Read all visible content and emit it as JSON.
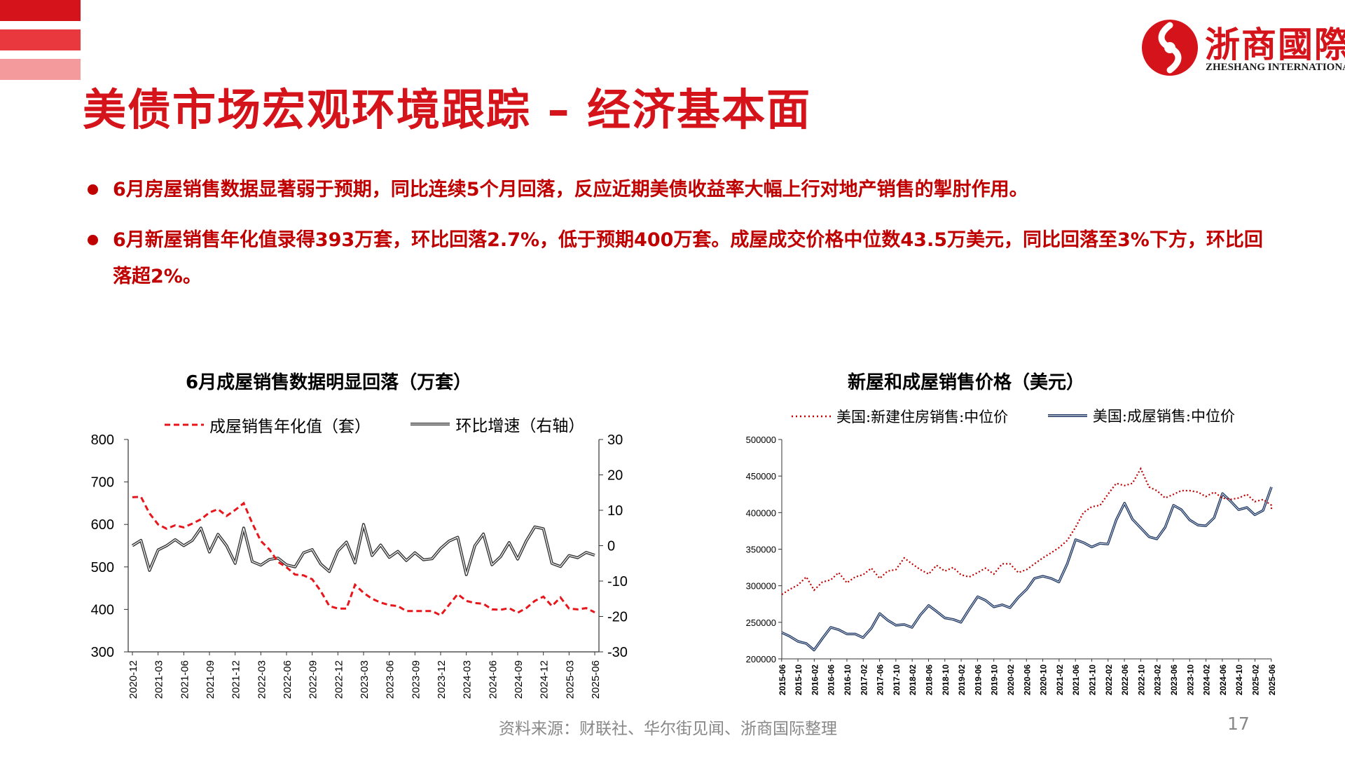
{
  "colors": {
    "brand_red": "#d5131a",
    "bullet_red": "#c00000",
    "series_red": "#e8161b",
    "series_black": "#333333",
    "series_navy": "#1f3864",
    "series_dotted_red": "#c00000"
  },
  "header": {
    "title": "美债市场宏观环境跟踪 – 经济基本面",
    "logo_cn": "浙商國際",
    "logo_en": "ZHESHANG INTERNATIONAL",
    "logo_icon": "zheshang-logo-icon"
  },
  "bullets": [
    {
      "text": "6月房屋销售数据显著弱于预期，同比连续5个月回落，反应近期美债收益率大幅上行对地产销售的掣肘作用。"
    },
    {
      "text": "6月新屋销售年化值录得393万套，环比回落2.7%，低于预期400万套。成屋成交价格中位数43.5万美元，同比回落至3%下方，环比回落超2%。"
    }
  ],
  "footer": {
    "source": "资料来源：财联社、华尔街见闻、浙商国际整理",
    "page": "17"
  },
  "chart_data": [
    {
      "type": "line",
      "title": "6月成屋销售数据明显回落（万套）",
      "x": [
        "2020-12",
        "2021-01",
        "2021-02",
        "2021-03",
        "2021-04",
        "2021-05",
        "2021-06",
        "2021-07",
        "2021-08",
        "2021-09",
        "2021-10",
        "2021-11",
        "2021-12",
        "2022-01",
        "2022-02",
        "2022-03",
        "2022-04",
        "2022-05",
        "2022-06",
        "2022-07",
        "2022-08",
        "2022-09",
        "2022-10",
        "2022-11",
        "2022-12",
        "2023-01",
        "2023-02",
        "2023-03",
        "2023-04",
        "2023-05",
        "2023-06",
        "2023-07",
        "2023-08",
        "2023-09",
        "2023-10",
        "2023-11",
        "2023-12",
        "2024-01",
        "2024-02",
        "2024-03",
        "2024-04",
        "2024-05",
        "2024-06",
        "2024-07",
        "2024-08",
        "2024-09",
        "2024-10",
        "2024-11",
        "2024-12",
        "2025-01",
        "2025-02",
        "2025-03",
        "2025-04",
        "2025-05",
        "2025-06"
      ],
      "x_tick_labels": [
        "2020-12",
        "2021-03",
        "2021-06",
        "2021-09",
        "2021-12",
        "2022-03",
        "2022-06",
        "2022-09",
        "2022-12",
        "2023-03",
        "2023-06",
        "2023-09",
        "2023-12",
        "2024-03",
        "2024-06",
        "2024-09",
        "2024-12",
        "2025-03",
        "2025-06"
      ],
      "series": [
        {
          "name": "成屋销售年化值（套）",
          "axis": "left",
          "style": "dashed",
          "values": [
            664,
            665,
            626,
            600,
            590,
            598,
            593,
            602,
            612,
            628,
            636,
            620,
            634,
            650,
            603,
            561,
            541,
            512,
            499,
            482,
            480,
            471,
            443,
            408,
            402,
            402,
            458,
            439,
            425,
            416,
            410,
            408,
            396,
            396,
            396,
            396,
            386,
            411,
            436,
            420,
            415,
            413,
            400,
            399,
            403,
            392,
            403,
            420,
            430,
            408,
            428,
            402,
            400,
            403,
            393
          ]
        },
        {
          "name": "环比增速（右轴）",
          "axis": "right",
          "style": "solid",
          "values": [
            0,
            1.5,
            -7,
            -1.2,
            0,
            1.7,
            0,
            1.5,
            5,
            -1.8,
            3.2,
            0,
            -5,
            5,
            -4.5,
            -5.5,
            -3.9,
            -3.5,
            -5.4,
            -6,
            -2,
            -1.1,
            -5.2,
            -7.3,
            -1.5,
            1,
            -4.9,
            6,
            -2.8,
            0.2,
            -3.3,
            -1.6,
            -4.2,
            -2,
            -4,
            -3.7,
            -0.8,
            1.3,
            2.4,
            -8.2,
            0,
            3.3,
            -5.4,
            -3.1,
            0.9,
            -3.8,
            1.3,
            5.3,
            4.8,
            -5,
            -5.9,
            -2.8,
            -3.4,
            -1.9,
            -2.7
          ]
        }
      ],
      "y_left": {
        "min": 300,
        "max": 800,
        "ticks": [
          300,
          400,
          500,
          600,
          700,
          800
        ]
      },
      "y_right": {
        "min": -30,
        "max": 30,
        "ticks": [
          -30,
          -20,
          -10,
          0,
          10,
          20,
          30
        ]
      }
    },
    {
      "type": "line",
      "title": "新屋和成屋销售价格（美元）",
      "x_tick_labels": [
        "2015-06",
        "2015-10",
        "2016-02",
        "2016-06",
        "2016-10",
        "2017-02",
        "2017-06",
        "2017-10",
        "2018-02",
        "2018-06",
        "2018-10",
        "2019-02",
        "2019-06",
        "2019-10",
        "2020-02",
        "2020-06",
        "2020-10",
        "2021-02",
        "2021-06",
        "2021-10",
        "2022-02",
        "2022-06",
        "2022-10",
        "2023-02",
        "2023-06",
        "2023-10",
        "2024-02",
        "2024-06",
        "2024-10",
        "2025-02",
        "2025-06"
      ],
      "y": {
        "min": 200000,
        "max": 500000,
        "ticks": [
          200000,
          250000,
          300000,
          350000,
          400000,
          450000,
          500000
        ]
      },
      "series": [
        {
          "name": "美国:新建住房销售:中位价",
          "style": "dotted",
          "points": [
            [
              2015.42,
              288000
            ],
            [
              2015.58,
              295000
            ],
            [
              2015.75,
              301000
            ],
            [
              2015.92,
              312000
            ],
            [
              2016.08,
              294000
            ],
            [
              2016.25,
              305000
            ],
            [
              2016.42,
              308000
            ],
            [
              2016.58,
              318000
            ],
            [
              2016.75,
              304000
            ],
            [
              2016.92,
              312000
            ],
            [
              2017.08,
              315000
            ],
            [
              2017.25,
              324000
            ],
            [
              2017.42,
              310000
            ],
            [
              2017.58,
              320000
            ],
            [
              2017.75,
              322000
            ],
            [
              2017.92,
              338000
            ],
            [
              2018.08,
              330000
            ],
            [
              2018.25,
              322000
            ],
            [
              2018.42,
              316000
            ],
            [
              2018.58,
              328000
            ],
            [
              2018.75,
              320000
            ],
            [
              2018.92,
              325000
            ],
            [
              2019.08,
              315000
            ],
            [
              2019.25,
              312000
            ],
            [
              2019.42,
              318000
            ],
            [
              2019.58,
              324000
            ],
            [
              2019.75,
              316000
            ],
            [
              2019.92,
              330000
            ],
            [
              2020.08,
              330000
            ],
            [
              2020.25,
              318000
            ],
            [
              2020.42,
              322000
            ],
            [
              2020.58,
              330000
            ],
            [
              2020.75,
              338000
            ],
            [
              2020.92,
              345000
            ],
            [
              2021.08,
              352000
            ],
            [
              2021.25,
              362000
            ],
            [
              2021.42,
              380000
            ],
            [
              2021.58,
              400000
            ],
            [
              2021.75,
              408000
            ],
            [
              2021.92,
              410000
            ],
            [
              2022.08,
              425000
            ],
            [
              2022.25,
              440000
            ],
            [
              2022.42,
              437000
            ],
            [
              2022.58,
              440000
            ],
            [
              2022.75,
              460000
            ],
            [
              2022.92,
              435000
            ],
            [
              2023.08,
              430000
            ],
            [
              2023.25,
              420000
            ],
            [
              2023.42,
              425000
            ],
            [
              2023.58,
              430000
            ],
            [
              2023.75,
              430000
            ],
            [
              2023.92,
              428000
            ],
            [
              2024.08,
              422000
            ],
            [
              2024.25,
              428000
            ],
            [
              2024.42,
              420000
            ],
            [
              2024.58,
              418000
            ],
            [
              2024.75,
              420000
            ],
            [
              2024.92,
              425000
            ],
            [
              2025.08,
              415000
            ],
            [
              2025.25,
              418000
            ],
            [
              2025.42,
              410000
            ],
            [
              2025.42,
              403000
            ]
          ]
        },
        {
          "name": "美国:成屋销售:中位价",
          "style": "solid",
          "points": [
            [
              2015.42,
              236000
            ],
            [
              2015.58,
              231000
            ],
            [
              2015.75,
              224000
            ],
            [
              2015.92,
              221000
            ],
            [
              2016.08,
              212000
            ],
            [
              2016.25,
              228000
            ],
            [
              2016.42,
              243000
            ],
            [
              2016.58,
              240000
            ],
            [
              2016.75,
              234000
            ],
            [
              2016.92,
              234000
            ],
            [
              2017.08,
              229000
            ],
            [
              2017.25,
              242000
            ],
            [
              2017.42,
              262000
            ],
            [
              2017.58,
              253000
            ],
            [
              2017.75,
              246000
            ],
            [
              2017.92,
              247000
            ],
            [
              2018.08,
              243000
            ],
            [
              2018.25,
              260000
            ],
            [
              2018.42,
              273000
            ],
            [
              2018.58,
              265000
            ],
            [
              2018.75,
              256000
            ],
            [
              2018.92,
              254000
            ],
            [
              2019.08,
              250000
            ],
            [
              2019.25,
              268000
            ],
            [
              2019.42,
              285000
            ],
            [
              2019.58,
              280000
            ],
            [
              2019.75,
              271000
            ],
            [
              2019.92,
              274000
            ],
            [
              2020.08,
              270000
            ],
            [
              2020.25,
              284000
            ],
            [
              2020.42,
              295000
            ],
            [
              2020.58,
              310000
            ],
            [
              2020.75,
              313000
            ],
            [
              2020.92,
              310000
            ],
            [
              2021.08,
              305000
            ],
            [
              2021.25,
              330000
            ],
            [
              2021.42,
              363000
            ],
            [
              2021.58,
              359000
            ],
            [
              2021.75,
              353000
            ],
            [
              2021.92,
              358000
            ],
            [
              2022.08,
              357000
            ],
            [
              2022.25,
              390000
            ],
            [
              2022.42,
              413000
            ],
            [
              2022.58,
              391000
            ],
            [
              2022.75,
              379000
            ],
            [
              2022.92,
              367000
            ],
            [
              2023.08,
              364000
            ],
            [
              2023.25,
              380000
            ],
            [
              2023.42,
              410000
            ],
            [
              2023.58,
              404000
            ],
            [
              2023.75,
              390000
            ],
            [
              2023.92,
              383000
            ],
            [
              2024.08,
              382000
            ],
            [
              2024.25,
              393000
            ],
            [
              2024.42,
              426000
            ],
            [
              2024.58,
              416000
            ],
            [
              2024.75,
              404000
            ],
            [
              2024.92,
              407000
            ],
            [
              2025.08,
              397000
            ],
            [
              2025.25,
              403000
            ],
            [
              2025.42,
              435000
            ]
          ]
        }
      ]
    }
  ]
}
